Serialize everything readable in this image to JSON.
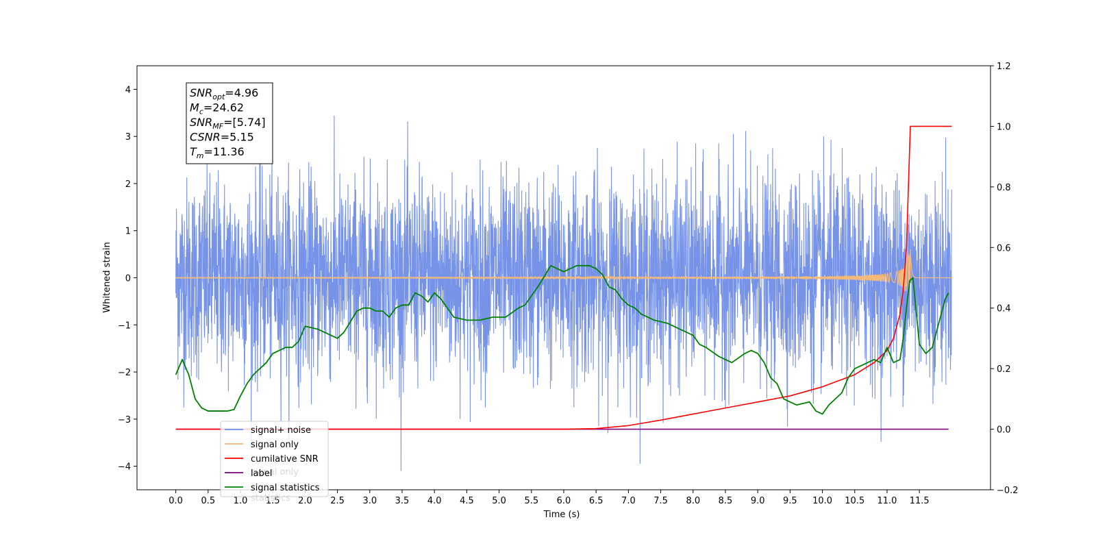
{
  "chart_data": {
    "type": "line",
    "xlabel": "Time (s)",
    "ylabel_left": "Whitened strain",
    "ylabel_right": "",
    "xlim": [
      -0.6,
      12.6
    ],
    "ylim_left": [
      -4.5,
      4.5
    ],
    "ylim_right": [
      -0.2,
      1.2
    ],
    "x_ticks": [
      "0.0",
      "0.5",
      "1.0",
      "1.5",
      "2.0",
      "2.5",
      "3.0",
      "3.5",
      "4.0",
      "4.5",
      "5.0",
      "5.5",
      "6.0",
      "6.5",
      "7.0",
      "7.5",
      "8.0",
      "8.5",
      "9.0",
      "9.5",
      "10.0",
      "10.5",
      "11.0",
      "11.5"
    ],
    "y_ticks_left": [
      "−4",
      "−3",
      "−2",
      "−1",
      "0",
      "1",
      "2",
      "3",
      "4"
    ],
    "y_ticks_right": [
      "−0.2",
      "0.0",
      "0.2",
      "0.4",
      "0.6",
      "0.8",
      "1.0",
      "1.2"
    ],
    "grid": false,
    "legend_position": "lower-left",
    "colors": {
      "signal_noise": "#6f8de6",
      "signal_only": "#f5b97a",
      "cumulative_snr": "#ff0000",
      "label": "#800080",
      "signal_statistics": "#008000"
    },
    "series": [
      {
        "name": "signal+ noise",
        "axis": "left",
        "x_range": [
          0.0,
          12.0
        ],
        "envelope_upper_approx": 2.5,
        "envelope_lower_approx": -2.2,
        "max": 3.7,
        "min": -4.1
      },
      {
        "name": "signal only",
        "axis": "left",
        "x_range": [
          0.0,
          12.0
        ],
        "peak_time": 11.36,
        "peak_amplitude": 0.6
      },
      {
        "name": "cumilative SNR",
        "axis": "right",
        "x": [
          0.0,
          5.5,
          6.0,
          6.5,
          7.0,
          7.5,
          8.0,
          8.5,
          9.0,
          9.5,
          10.0,
          10.5,
          10.8,
          11.0,
          11.1,
          11.2,
          11.25,
          11.3,
          11.33,
          11.36,
          11.5,
          12.0
        ],
        "y": [
          0.0,
          0.0,
          0.0,
          0.002,
          0.012,
          0.03,
          0.05,
          0.07,
          0.09,
          0.11,
          0.14,
          0.18,
          0.22,
          0.26,
          0.3,
          0.38,
          0.46,
          0.6,
          0.8,
          1.0,
          1.0,
          1.0
        ]
      },
      {
        "name": "label",
        "axis": "right",
        "x": [
          0.0,
          11.95
        ],
        "y": [
          0.0,
          0.0
        ]
      },
      {
        "name": "signal statistics",
        "axis": "right",
        "x": [
          0.0,
          0.1,
          0.2,
          0.3,
          0.4,
          0.5,
          0.6,
          0.7,
          0.8,
          0.9,
          1.0,
          1.1,
          1.2,
          1.3,
          1.4,
          1.5,
          1.6,
          1.7,
          1.8,
          1.9,
          2.0,
          2.2,
          2.4,
          2.5,
          2.6,
          2.8,
          2.9,
          3.0,
          3.1,
          3.2,
          3.3,
          3.4,
          3.5,
          3.6,
          3.7,
          3.8,
          3.9,
          4.0,
          4.1,
          4.2,
          4.3,
          4.5,
          4.7,
          4.9,
          5.0,
          5.1,
          5.3,
          5.4,
          5.5,
          5.6,
          5.8,
          6.0,
          6.1,
          6.2,
          6.4,
          6.5,
          6.6,
          6.7,
          6.8,
          6.9,
          7.0,
          7.1,
          7.2,
          7.4,
          7.6,
          7.8,
          7.9,
          8.0,
          8.1,
          8.2,
          8.4,
          8.6,
          8.8,
          8.9,
          9.0,
          9.1,
          9.2,
          9.3,
          9.4,
          9.5,
          9.6,
          9.8,
          9.9,
          10.0,
          10.1,
          10.2,
          10.3,
          10.4,
          10.5,
          10.7,
          10.8,
          10.9,
          11.0,
          11.1,
          11.2,
          11.25,
          11.3,
          11.35,
          11.4,
          11.5,
          11.6,
          11.7,
          11.8,
          11.9,
          11.95
        ],
        "y": [
          0.18,
          0.23,
          0.18,
          0.1,
          0.07,
          0.06,
          0.06,
          0.06,
          0.06,
          0.065,
          0.11,
          0.15,
          0.18,
          0.2,
          0.22,
          0.25,
          0.26,
          0.27,
          0.27,
          0.29,
          0.34,
          0.33,
          0.31,
          0.3,
          0.32,
          0.39,
          0.4,
          0.4,
          0.39,
          0.39,
          0.37,
          0.4,
          0.41,
          0.41,
          0.45,
          0.44,
          0.42,
          0.45,
          0.43,
          0.4,
          0.37,
          0.36,
          0.36,
          0.37,
          0.37,
          0.37,
          0.4,
          0.41,
          0.44,
          0.47,
          0.54,
          0.52,
          0.53,
          0.54,
          0.54,
          0.53,
          0.51,
          0.47,
          0.46,
          0.43,
          0.41,
          0.4,
          0.38,
          0.36,
          0.35,
          0.33,
          0.32,
          0.31,
          0.28,
          0.27,
          0.24,
          0.22,
          0.25,
          0.26,
          0.25,
          0.22,
          0.17,
          0.15,
          0.1,
          0.09,
          0.08,
          0.09,
          0.06,
          0.05,
          0.08,
          0.1,
          0.12,
          0.17,
          0.2,
          0.22,
          0.23,
          0.22,
          0.27,
          0.22,
          0.23,
          0.3,
          0.4,
          0.49,
          0.5,
          0.28,
          0.25,
          0.27,
          0.35,
          0.43,
          0.45
        ]
      }
    ],
    "annotation": {
      "lines": [
        {
          "main": "SNR",
          "sub": "opt",
          "rest": "=4.96"
        },
        {
          "main": "M",
          "sub": "c",
          "rest": "=24.62"
        },
        {
          "main": "SNR",
          "sub": "MF",
          "rest": "=[5.74]"
        },
        {
          "main": "CSNR",
          "sub": "",
          "rest": "=5.15"
        },
        {
          "main": "T",
          "sub": "m",
          "rest": "=11.36"
        }
      ]
    },
    "legend": {
      "entries": [
        "signal+ noise",
        "signal only",
        "cumilative SNR",
        "label",
        "signal statistics"
      ],
      "hidden_behind_text": [
        "signal only",
        "statistics"
      ]
    }
  }
}
